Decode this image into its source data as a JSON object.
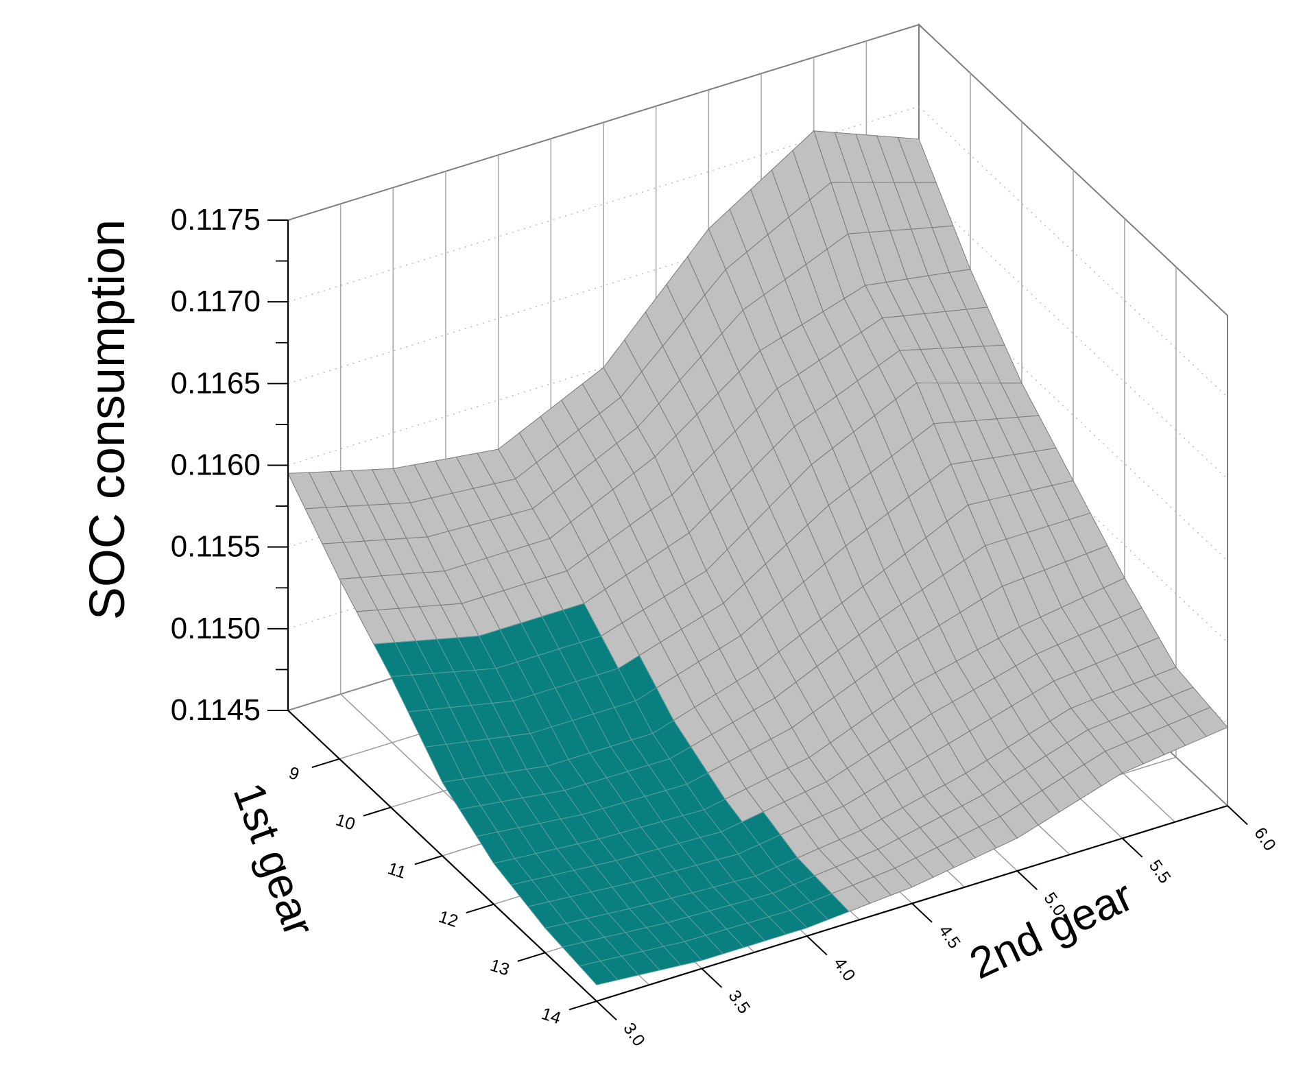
{
  "chart_data": {
    "type": "surface3d",
    "zlabel": "SOC consumption",
    "xlabel_left": "1st gear",
    "xlabel_right": "2nd gear",
    "first_gear_ticks": [
      "9",
      "10",
      "11",
      "12",
      "13",
      "14"
    ],
    "first_gear_range": [
      8,
      14
    ],
    "second_gear_ticks": [
      "3.0",
      "3.5",
      "4.0",
      "4.5",
      "5.0",
      "5.5",
      "6.0"
    ],
    "second_gear_range": [
      3.0,
      6.0
    ],
    "z_ticks": [
      "0.1175",
      "0.1170",
      "0.1165",
      "0.1160",
      "0.1155",
      "0.1150",
      "0.1145"
    ],
    "zlim": [
      0.1145,
      0.1175
    ],
    "surface_colors": {
      "grey": "#c0c0c0",
      "teal": "#0a7f80",
      "mesh": "#7a7a7a"
    },
    "surface_grid": {
      "second_gear": [
        3.0,
        3.5,
        4.0,
        4.5,
        5.0,
        5.5,
        6.0
      ],
      "first_gear": [
        8,
        9,
        10,
        11,
        12,
        13,
        14
      ],
      "z_rows_by_first_gear": [
        [
          0.11595,
          0.11578,
          0.1157,
          0.116,
          0.11665,
          0.11705,
          0.1168
        ],
        [
          0.1156,
          0.11545,
          0.11545,
          0.11575,
          0.1162,
          0.1164,
          0.1163
        ],
        [
          0.1153,
          0.11515,
          0.11515,
          0.11535,
          0.1158,
          0.1161,
          0.1159
        ],
        [
          0.11495,
          0.11485,
          0.11485,
          0.11505,
          0.11535,
          0.11565,
          0.1156
        ],
        [
          0.11475,
          0.1147,
          0.11468,
          0.1148,
          0.11505,
          0.1152,
          0.1153
        ],
        [
          0.11465,
          0.1146,
          0.11457,
          0.11465,
          0.1148,
          0.115,
          0.11505
        ],
        [
          0.1146,
          0.11455,
          0.11455,
          0.1146,
          0.1147,
          0.1149,
          0.11498
        ]
      ]
    }
  }
}
